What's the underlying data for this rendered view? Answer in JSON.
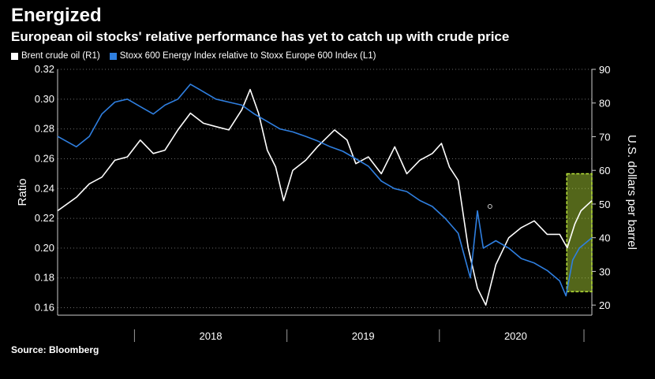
{
  "header": {
    "title": "Energized",
    "subtitle": "European oil stocks' relative performance has yet to catch up with crude price"
  },
  "source": "Source: Bloomberg",
  "colors": {
    "background": "#000000",
    "brent": "#ffffff",
    "stoxx": "#2f7fe0",
    "highlight": "#b9e23a"
  },
  "chart_data": {
    "type": "line",
    "legend": [
      "Brent crude oil (R1)",
      "Stoxx 600 Energy Index relative to Stoxx Europe 600 Index (L1)"
    ],
    "legend_position": "top-left",
    "ylabel_left": "Ratio",
    "ylabel_right": "U.S. dollars per barrel",
    "left_ticks": [
      "0.16",
      "0.18",
      "0.20",
      "0.22",
      "0.24",
      "0.26",
      "0.28",
      "0.30",
      "0.32"
    ],
    "right_ticks": [
      "20",
      "30",
      "40",
      "50",
      "60",
      "70",
      "80",
      "90"
    ],
    "x_tick_labels": [
      "2018",
      "2019",
      "2020"
    ],
    "ylim_left": [
      0.155,
      0.32
    ],
    "ylim_right": [
      17,
      90
    ],
    "xlim": [
      "2017-07-01",
      "2020-12-31"
    ],
    "highlight_window": [
      "2020-11-01",
      "2020-12-31"
    ],
    "series": [
      {
        "name": "Brent crude oil (R1)",
        "axis": "right",
        "x": [
          "2017-07-01",
          "2017-08-15",
          "2017-09-15",
          "2017-10-15",
          "2017-11-15",
          "2017-12-15",
          "2018-01-15",
          "2018-02-15",
          "2018-03-15",
          "2018-04-15",
          "2018-05-15",
          "2018-06-15",
          "2018-07-15",
          "2018-08-15",
          "2018-09-15",
          "2018-10-05",
          "2018-10-25",
          "2018-11-15",
          "2018-12-05",
          "2018-12-24",
          "2019-01-15",
          "2019-02-15",
          "2019-03-15",
          "2019-04-25",
          "2019-05-25",
          "2019-06-15",
          "2019-07-15",
          "2019-08-15",
          "2019-09-16",
          "2019-10-15",
          "2019-11-15",
          "2019-12-15",
          "2020-01-06",
          "2020-01-25",
          "2020-02-15",
          "2020-03-10",
          "2020-04-01",
          "2020-04-21",
          "2020-05-15",
          "2020-06-15",
          "2020-07-15",
          "2020-08-15",
          "2020-09-15",
          "2020-10-15",
          "2020-11-02",
          "2020-11-20",
          "2020-12-05",
          "2020-12-31"
        ],
        "values": [
          48,
          52,
          56,
          58,
          63,
          64,
          69,
          65,
          66,
          72,
          77,
          74,
          73,
          72,
          78,
          84,
          77,
          66,
          61,
          51,
          60,
          63,
          67,
          72,
          69,
          62,
          64,
          59,
          67,
          59,
          63,
          65,
          68,
          61,
          57,
          37,
          25,
          20,
          32,
          40,
          43,
          45,
          41,
          41,
          37,
          44,
          48,
          51
        ]
      },
      {
        "name": "Stoxx 600 Energy Index relative to Stoxx Europe 600 Index (L1)",
        "axis": "left",
        "x": [
          "2017-07-01",
          "2017-08-15",
          "2017-09-15",
          "2017-10-15",
          "2017-11-15",
          "2017-12-15",
          "2018-01-15",
          "2018-02-15",
          "2018-03-15",
          "2018-04-15",
          "2018-05-15",
          "2018-06-15",
          "2018-07-15",
          "2018-08-15",
          "2018-09-15",
          "2018-10-15",
          "2018-11-15",
          "2018-12-15",
          "2019-01-15",
          "2019-02-15",
          "2019-03-15",
          "2019-04-15",
          "2019-05-15",
          "2019-06-15",
          "2019-07-15",
          "2019-08-15",
          "2019-09-15",
          "2019-10-15",
          "2019-11-15",
          "2019-12-15",
          "2020-01-15",
          "2020-02-15",
          "2020-03-15",
          "2020-04-01",
          "2020-04-15",
          "2020-05-15",
          "2020-06-15",
          "2020-07-15",
          "2020-08-15",
          "2020-09-15",
          "2020-10-15",
          "2020-10-30",
          "2020-11-15",
          "2020-12-01",
          "2020-12-31"
        ],
        "values": [
          0.275,
          0.268,
          0.275,
          0.29,
          0.298,
          0.3,
          0.295,
          0.29,
          0.296,
          0.3,
          0.31,
          0.305,
          0.3,
          0.298,
          0.296,
          0.29,
          0.285,
          0.28,
          0.278,
          0.275,
          0.272,
          0.268,
          0.265,
          0.26,
          0.255,
          0.245,
          0.24,
          0.238,
          0.232,
          0.228,
          0.22,
          0.21,
          0.18,
          0.225,
          0.2,
          0.205,
          0.2,
          0.193,
          0.19,
          0.185,
          0.178,
          0.168,
          0.192,
          0.2,
          0.207
        ]
      }
    ],
    "annotations": [
      {
        "type": "marker",
        "shape": "hollow-circle",
        "series": "Stoxx 600 Energy Index relative to Stoxx Europe 600 Index (L1)",
        "x": "2020-05-01",
        "value": 0.228
      }
    ]
  }
}
